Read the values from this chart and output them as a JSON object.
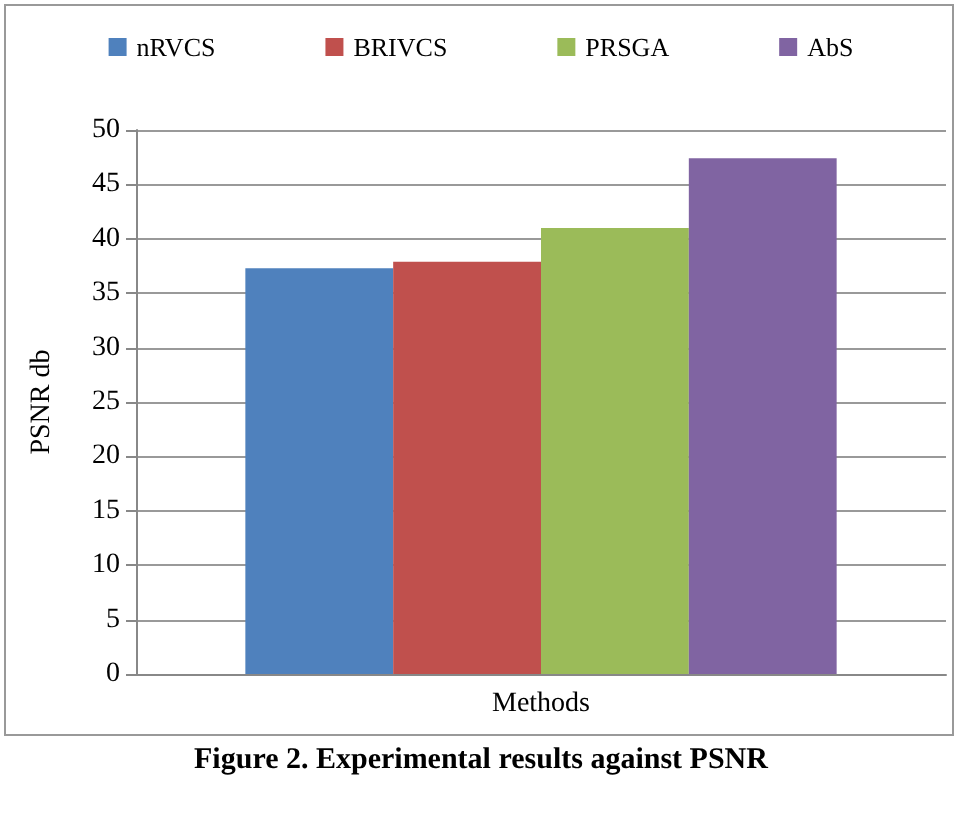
{
  "chart_data": {
    "type": "bar",
    "categories": [
      "Methods"
    ],
    "series": [
      {
        "name": "nRVCS",
        "color": "#4f81bd",
        "values": [
          37.3
        ]
      },
      {
        "name": "BRIVCS",
        "color": "#c0504d",
        "values": [
          37.9
        ]
      },
      {
        "name": "PRSGA",
        "color": "#9bbb59",
        "values": [
          41
        ]
      },
      {
        "name": "AbS",
        "color": "#8064a2",
        "values": [
          47.4
        ]
      }
    ],
    "ylabel": "PSNR db",
    "ylim": [
      0,
      50
    ],
    "yticks": [
      0,
      5,
      10,
      15,
      20,
      25,
      30,
      35,
      40,
      45,
      50
    ],
    "grid": "y",
    "legend": "top",
    "annotations": [
      "Figure 2.  Experimental results against PSNR"
    ]
  }
}
